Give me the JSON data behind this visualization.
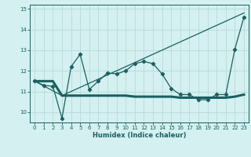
{
  "xlabel": "Humidex (Indice chaleur)",
  "background_color": "#d4f0f0",
  "grid_color": "#b8dada",
  "line_color": "#1a6060",
  "xlim": [
    -0.5,
    23.5
  ],
  "ylim": [
    9.5,
    15.2
  ],
  "yticks": [
    10,
    11,
    12,
    13,
    14,
    15
  ],
  "xticks": [
    0,
    1,
    2,
    3,
    4,
    5,
    6,
    7,
    8,
    9,
    10,
    11,
    12,
    13,
    14,
    15,
    16,
    17,
    18,
    19,
    20,
    21,
    22,
    23
  ],
  "series1_x": [
    0,
    1,
    2,
    3,
    4,
    5,
    6,
    7,
    8,
    9,
    10,
    11,
    12,
    13,
    14,
    15,
    16,
    17,
    18,
    19,
    20,
    21,
    22,
    23
  ],
  "series1_y": [
    11.5,
    11.3,
    11.25,
    9.7,
    12.2,
    12.8,
    11.1,
    11.5,
    11.9,
    11.85,
    12.0,
    12.35,
    12.45,
    12.35,
    11.85,
    11.15,
    10.85,
    10.85,
    10.6,
    10.6,
    10.85,
    10.85,
    13.05,
    14.6
  ],
  "series2_x": [
    0,
    1,
    2,
    3,
    4,
    5,
    6,
    7,
    8,
    9,
    10,
    11,
    12,
    13,
    14,
    15,
    16,
    17,
    18,
    19,
    20,
    21,
    22,
    23
  ],
  "series2_y": [
    11.5,
    11.5,
    11.5,
    10.8,
    10.8,
    10.8,
    10.8,
    10.8,
    10.8,
    10.8,
    10.8,
    10.75,
    10.75,
    10.75,
    10.75,
    10.75,
    10.7,
    10.7,
    10.7,
    10.7,
    10.7,
    10.7,
    10.75,
    10.85
  ],
  "series3_x": [
    0,
    3,
    23
  ],
  "series3_y": [
    11.5,
    10.8,
    14.8
  ]
}
